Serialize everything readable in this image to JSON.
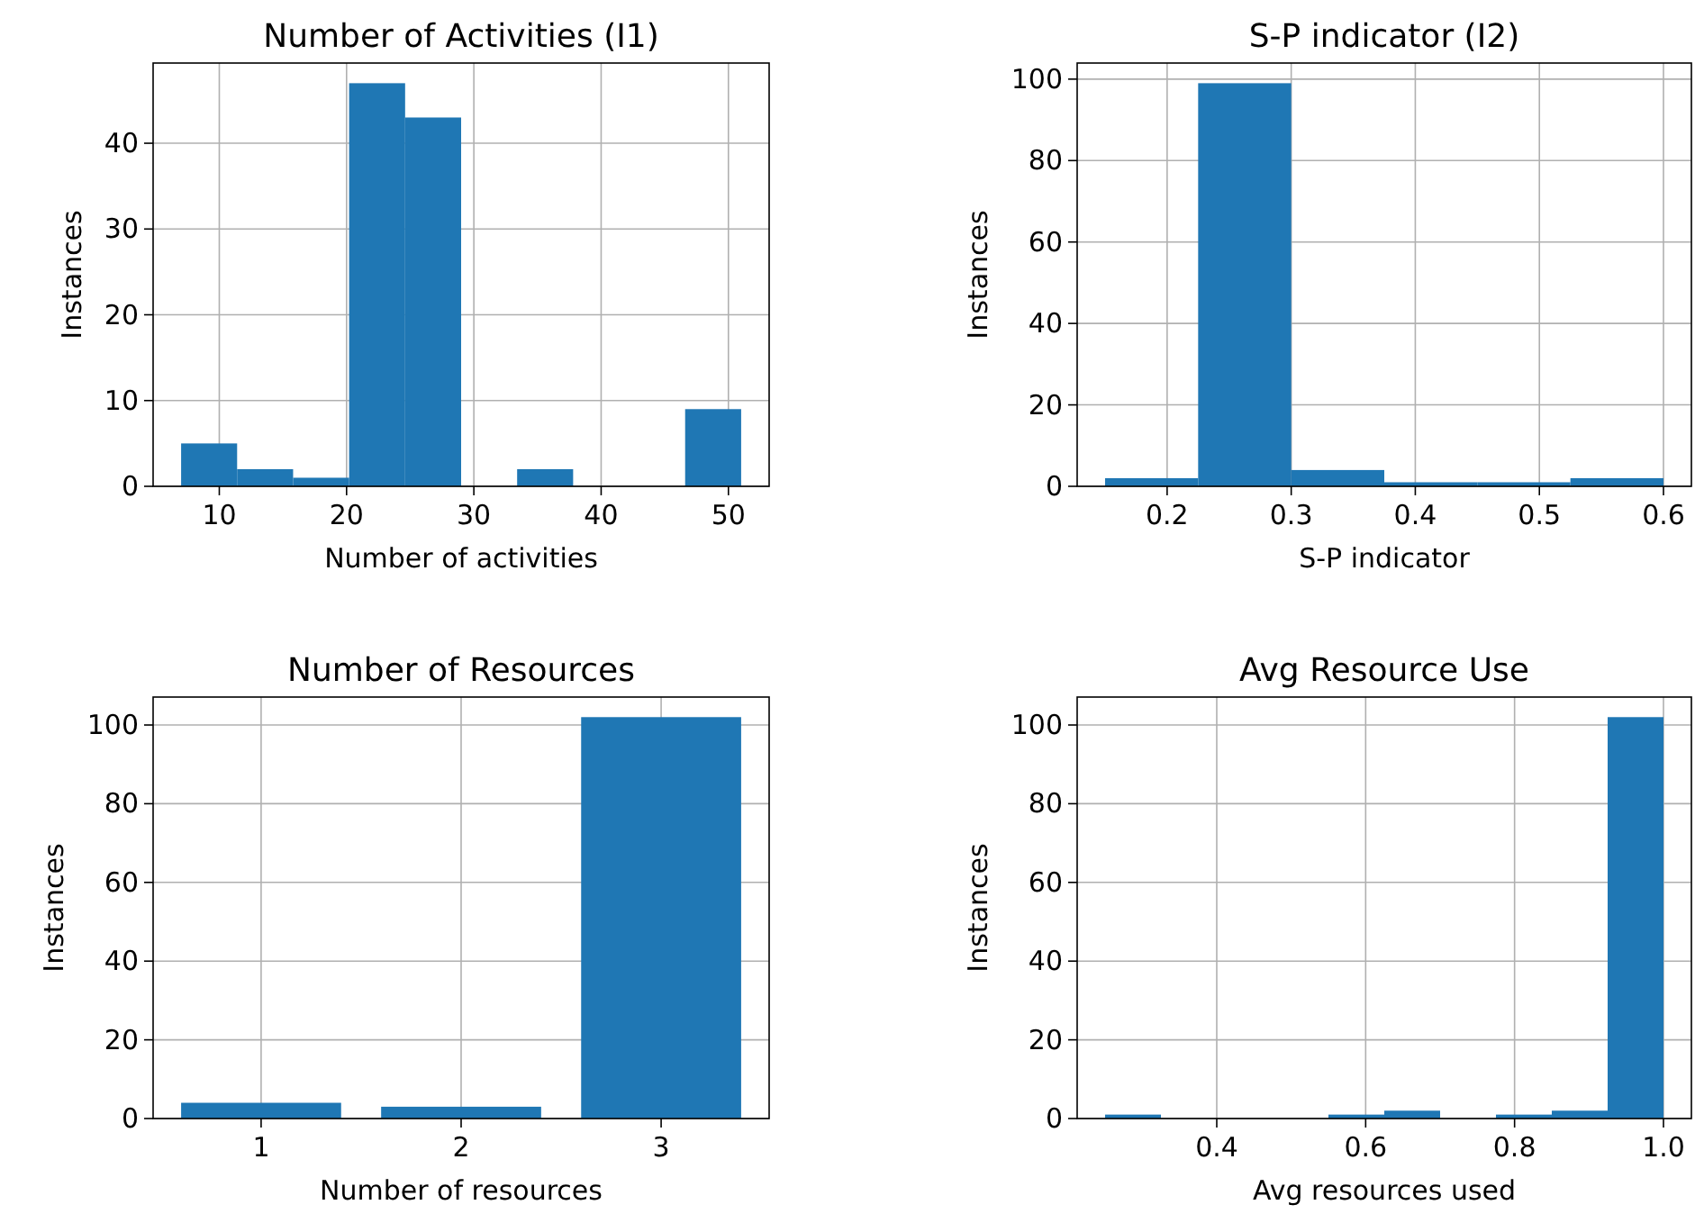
{
  "chart_data": [
    {
      "type": "histogram",
      "title": "Number of Activities (I1)",
      "xlabel": "Number of activities",
      "ylabel": "Instances",
      "color": "#1f77b4",
      "bins": [
        7,
        11.4,
        15.8,
        20.2,
        24.6,
        29,
        33.4,
        37.8,
        42.2,
        46.6,
        51
      ],
      "values": [
        5,
        2,
        1,
        47,
        43,
        0,
        2,
        0,
        0,
        9
      ],
      "xlim": [
        4.8,
        53.2
      ],
      "xticks": [
        10,
        20,
        30,
        40,
        50
      ],
      "ylim": [
        0,
        49.35
      ],
      "yticks": [
        0,
        10,
        20,
        30,
        40
      ],
      "grid": true
    },
    {
      "type": "histogram",
      "title": "S-P indicator (I2)",
      "xlabel": "S-P indicator",
      "ylabel": "Instances",
      "color": "#1f77b4",
      "bins": [
        0.15,
        0.225,
        0.3,
        0.375,
        0.45,
        0.525,
        0.6
      ],
      "values": [
        2,
        99,
        4,
        1,
        1,
        2
      ],
      "xlim": [
        0.1275,
        0.6225
      ],
      "xticks": [
        0.2,
        0.3,
        0.4,
        0.5,
        0.6
      ],
      "ylim": [
        0,
        103.95
      ],
      "yticks": [
        0,
        20,
        40,
        60,
        80,
        100
      ],
      "grid": true
    },
    {
      "type": "bar",
      "title": "Number of Resources",
      "xlabel": "Number of resources",
      "ylabel": "Instances",
      "color": "#1f77b4",
      "x": [
        1,
        2,
        3
      ],
      "values": [
        4,
        3,
        102
      ],
      "xlim": [
        0.46,
        3.54
      ],
      "xticks": [
        1,
        2,
        3
      ],
      "ylim": [
        0,
        107.1
      ],
      "yticks": [
        0,
        20,
        40,
        60,
        80,
        100
      ],
      "grid": true
    },
    {
      "type": "histogram",
      "title": "Avg Resource Use",
      "xlabel": "Avg resources used",
      "ylabel": "Instances",
      "color": "#1f77b4",
      "bins": [
        0.25,
        0.325,
        0.4,
        0.475,
        0.55,
        0.625,
        0.7,
        0.775,
        0.85,
        0.925,
        1.0
      ],
      "values": [
        1,
        0,
        0,
        0,
        1,
        2,
        0,
        1,
        2,
        102
      ],
      "xlim": [
        0.2125,
        1.0375
      ],
      "xticks": [
        {
          "value": 0.4,
          "label": "0.4"
        },
        {
          "value": 0.6,
          "label": "0.6"
        },
        {
          "value": 0.8,
          "label": "0.8"
        },
        {
          "value": 1.0,
          "label": "1.0"
        }
      ],
      "ylim": [
        0,
        107.1
      ],
      "yticks": [
        0,
        20,
        40,
        60,
        80,
        100
      ],
      "grid": true
    }
  ]
}
